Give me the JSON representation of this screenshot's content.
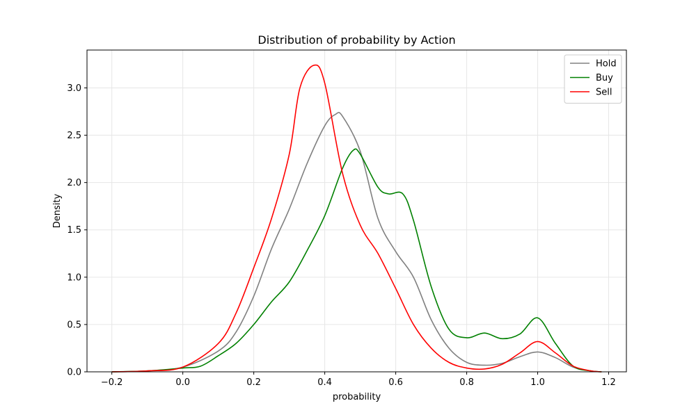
{
  "chart_data": {
    "type": "line",
    "title": "Distribution of probability by Action",
    "xlabel": "probability",
    "ylabel": "Density",
    "xlim": [
      -0.27,
      1.25
    ],
    "ylim": [
      0,
      3.4
    ],
    "xticks": [
      -0.2,
      0.0,
      0.2,
      0.4,
      0.6,
      0.8,
      1.0,
      1.2
    ],
    "xtick_labels": [
      "−0.2",
      "0.0",
      "0.2",
      "0.4",
      "0.6",
      "0.8",
      "1.0",
      "1.2"
    ],
    "yticks": [
      0.0,
      0.5,
      1.0,
      1.5,
      2.0,
      2.5,
      3.0
    ],
    "ytick_labels": [
      "0.0",
      "0.5",
      "1.0",
      "1.5",
      "2.0",
      "2.5",
      "3.0"
    ],
    "grid": true,
    "legend_position": "top-right",
    "series": [
      {
        "name": "Hold",
        "color": "#808080",
        "x": [
          -0.2,
          -0.1,
          0.0,
          0.1,
          0.15,
          0.2,
          0.25,
          0.3,
          0.35,
          0.4,
          0.43,
          0.45,
          0.5,
          0.55,
          0.6,
          0.65,
          0.7,
          0.75,
          0.8,
          0.85,
          0.9,
          0.95,
          1.0,
          1.05,
          1.1,
          1.15,
          1.18
        ],
        "y": [
          0.0,
          0.01,
          0.05,
          0.22,
          0.42,
          0.8,
          1.3,
          1.72,
          2.2,
          2.6,
          2.72,
          2.7,
          2.33,
          1.62,
          1.27,
          1.0,
          0.55,
          0.25,
          0.1,
          0.07,
          0.09,
          0.16,
          0.21,
          0.15,
          0.05,
          0.01,
          0.0
        ]
      },
      {
        "name": "Buy",
        "color": "#008000",
        "x": [
          -0.2,
          -0.1,
          0.0,
          0.05,
          0.1,
          0.15,
          0.2,
          0.25,
          0.3,
          0.35,
          0.4,
          0.45,
          0.48,
          0.5,
          0.55,
          0.58,
          0.62,
          0.65,
          0.7,
          0.75,
          0.8,
          0.85,
          0.9,
          0.95,
          1.0,
          1.05,
          1.1,
          1.15,
          1.18
        ],
        "y": [
          0.0,
          0.01,
          0.04,
          0.06,
          0.17,
          0.3,
          0.5,
          0.74,
          0.95,
          1.28,
          1.65,
          2.15,
          2.34,
          2.3,
          1.95,
          1.88,
          1.88,
          1.6,
          0.9,
          0.45,
          0.36,
          0.41,
          0.35,
          0.4,
          0.57,
          0.3,
          0.06,
          0.01,
          0.0
        ]
      },
      {
        "name": "Sell",
        "color": "#ff0000",
        "x": [
          -0.2,
          -0.1,
          0.0,
          0.1,
          0.15,
          0.2,
          0.25,
          0.3,
          0.33,
          0.37,
          0.4,
          0.45,
          0.5,
          0.55,
          0.6,
          0.65,
          0.7,
          0.75,
          0.8,
          0.85,
          0.9,
          0.95,
          1.0,
          1.05,
          1.1,
          1.15,
          1.18
        ],
        "y": [
          0.0,
          0.01,
          0.05,
          0.3,
          0.62,
          1.1,
          1.62,
          2.3,
          3.0,
          3.24,
          3.05,
          2.1,
          1.55,
          1.25,
          0.88,
          0.5,
          0.25,
          0.1,
          0.04,
          0.03,
          0.08,
          0.2,
          0.32,
          0.2,
          0.06,
          0.01,
          0.0
        ]
      }
    ]
  }
}
